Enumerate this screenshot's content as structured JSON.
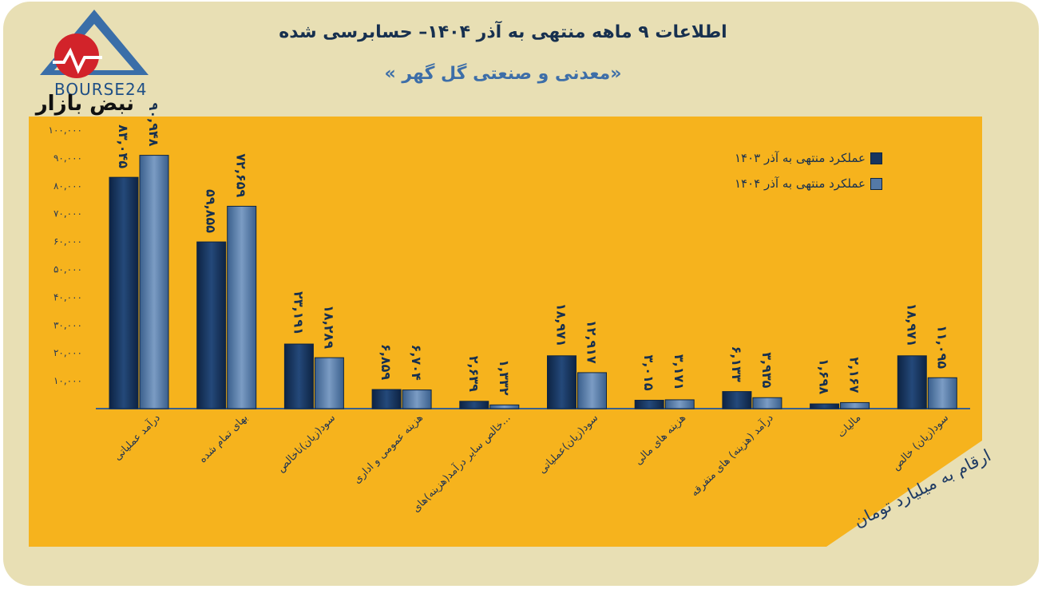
{
  "header": {
    "title": "اطلاعات ۹ ماهه منتهی به آذر ۱۴۰۴– حسابرسی شده",
    "subtitle": "«معدنی و صنعتی گل گهر »"
  },
  "logo": {
    "brand": "BOURSE24",
    "tagline": "نبض بازار"
  },
  "note": "ارقام به میلیارد تومان",
  "colors": {
    "background": "#e8dfb4",
    "panel": "#f6b31d",
    "series_1403": "#17355f",
    "series_1404": "#5479a6"
  },
  "chart_data": {
    "type": "bar",
    "categories": [
      "درآمد عملیاتی",
      "بهای تمام شده",
      "سود(زیان)ناخالص",
      "هزینه عمومی و اداری",
      "خالص سایر درآمد(هزینه)های...",
      "سود(زیان)عملیاتی",
      "هزینه های مالی",
      "درآمد (هزینه) های متفرقه",
      "مالیات",
      "سود(زیان) خالص"
    ],
    "series": [
      {
        "name": "عملکرد منتهی به آذر ۱۴۰۳",
        "values": [
          83045,
          59855,
          23191,
          6859,
          2639,
          18971,
          3015,
          6133,
          1698,
          18971
        ],
        "labels": [
          "۸۳,۰۴۵",
          "۵۹,۸۵۵",
          "۲۳,۱۹۱",
          "۶,۸۵۹",
          "۲,۶۳۹",
          "۱۸,۹۷۱",
          "۳,۰۱۵",
          "۶,۱۳۳",
          "۱,۶۹۸",
          "۱۸,۹۷۱"
        ]
      },
      {
        "name": "عملکرد منتهی به آذر ۱۴۰۴",
        "values": [
          90948,
          72659,
          18289,
          6704,
          1332,
          12917,
          3171,
          3935,
          2167,
          11095
        ],
        "labels": [
          "۹۰,۹۴۸",
          "۷۲,۶۵۹",
          "۱۸,۲۸۹",
          "۶,۷۰۴",
          "۱,۳۳۲",
          "۱۲,۹۱۷",
          "۳,۱۷۱",
          "۳,۹۳۵",
          "۲,۱۶۷",
          "۱۱,۰۹۵"
        ]
      }
    ],
    "yticks": [
      10000,
      20000,
      30000,
      40000,
      50000,
      60000,
      70000,
      80000,
      90000,
      100000
    ],
    "ytick_labels": [
      "۱۰,۰۰۰",
      "۲۰,۰۰۰",
      "۳۰,۰۰۰",
      "۴۰,۰۰۰",
      "۵۰,۰۰۰",
      "۶۰,۰۰۰",
      "۷۰,۰۰۰",
      "۸۰,۰۰۰",
      "۹۰,۰۰۰",
      "۱۰۰,۰۰۰"
    ],
    "ylim": [
      0,
      100000
    ],
    "grid": false,
    "legend_position": "top-right"
  }
}
